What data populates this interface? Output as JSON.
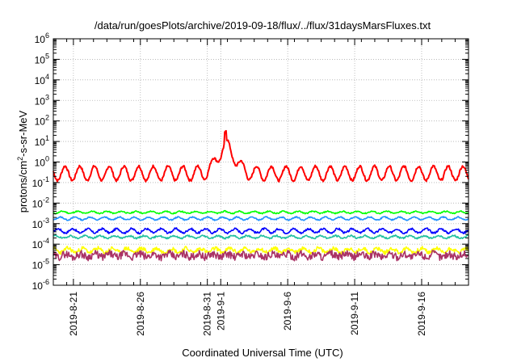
{
  "chart_data": {
    "type": "line",
    "title": "/data/run/goesPlots/archive/2019-09-18/flux/../flux/31daysMarsFluxes.txt",
    "xlabel": "Coordinated Universal Time (UTC)",
    "ylabel_parts": {
      "pre": "protons/cm",
      "sup": "2",
      "post": "-s-sr-MeV"
    },
    "y_scale": "log",
    "ylim_exponents": [
      -6,
      6
    ],
    "y_tick_exponents": [
      -6,
      -5,
      -4,
      -3,
      -2,
      -1,
      0,
      1,
      2,
      3,
      4,
      5,
      6
    ],
    "y_tick_base": "10",
    "x_range": [
      "2019-08-19",
      "2019-09-19"
    ],
    "x_ticks": [
      {
        "day": 2,
        "label": "2019-8-21"
      },
      {
        "day": 7,
        "label": "2019-8-26"
      },
      {
        "day": 12,
        "label": "2019-8-31"
      },
      {
        "day": 13,
        "label": "2019-9-1"
      },
      {
        "day": 18,
        "label": "2019-9-6"
      },
      {
        "day": 23,
        "label": "2019-9-11"
      },
      {
        "day": 28,
        "label": "2019-9-16"
      }
    ],
    "grid": true,
    "series": [
      {
        "color": "#ff0000",
        "base_log": -0.55,
        "amp": 0.35,
        "noise": 0.06,
        "seed": 7
      },
      {
        "color": "#00ff00",
        "base_log": -2.45,
        "amp": 0.05,
        "noise": 0.03,
        "seed": 11
      },
      {
        "color": "#1e90ff",
        "base_log": -2.75,
        "amp": 0.07,
        "noise": 0.03,
        "seed": 13
      },
      {
        "color": "#0000ff",
        "base_log": -3.35,
        "amp": 0.1,
        "noise": 0.05,
        "seed": 17
      },
      {
        "color": "#20c0a0",
        "base_log": -3.65,
        "amp": 0.06,
        "noise": 0.04,
        "seed": 19
      },
      {
        "color": "#ffff00",
        "base_log": -4.3,
        "amp": 0.1,
        "noise": 0.1,
        "seed": 23
      },
      {
        "color": "#aa3366",
        "base_log": -4.55,
        "amp": 0.08,
        "noise": 0.18,
        "seed": 29
      }
    ]
  }
}
